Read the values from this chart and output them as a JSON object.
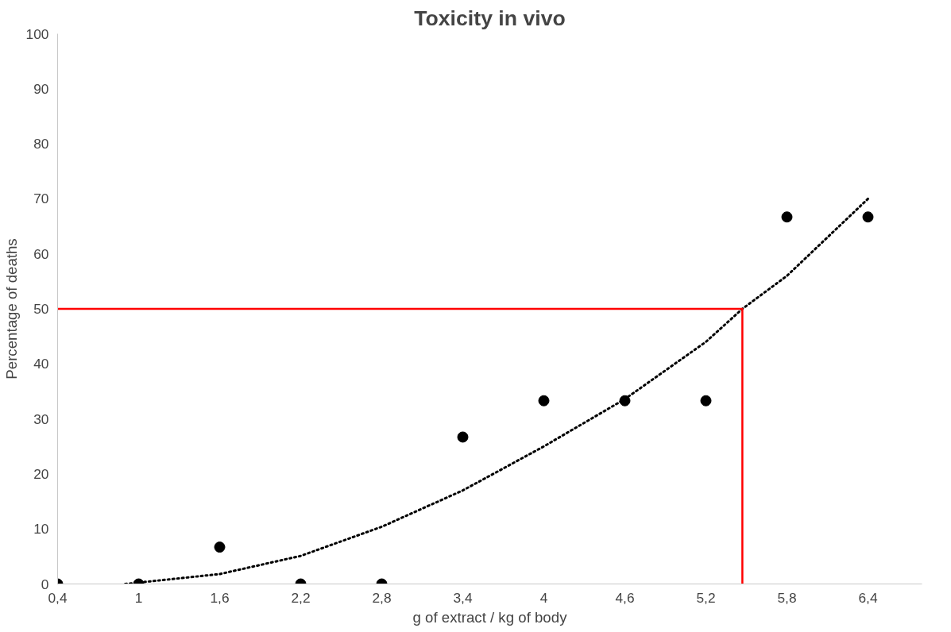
{
  "chart_data": {
    "type": "scatter",
    "title": "Toxicity in vivo",
    "xlabel": "g of extract / kg of body",
    "ylabel": "Percentage of deaths",
    "x": [
      0.4,
      1,
      1.6,
      2.2,
      2.8,
      3.4,
      4,
      4.6,
      5.2,
      5.8,
      6.4
    ],
    "series": [
      {
        "color": "#000000",
        "marker": "circle",
        "values": [
          0,
          0,
          6.7,
          0,
          0,
          26.7,
          33.3,
          33.3,
          33.3,
          66.7,
          66.7
        ]
      },
      {
        "type": "line",
        "color": "#000000",
        "line_style": "dotted",
        "x": [
          0.9,
          1.6,
          2.2,
          2.8,
          3.4,
          4,
          4.6,
          5.2,
          5.47,
          5.8,
          6.4
        ],
        "values": [
          0,
          1.8,
          5.1,
          10.4,
          17,
          25,
          33.6,
          44,
          50,
          56,
          70
        ]
      },
      {
        "type": "line",
        "color": "#ff0000",
        "line_style": "solid",
        "x": [
          0.4,
          5.47,
          5.47
        ],
        "values": [
          50,
          50,
          0
        ]
      }
    ],
    "xlim": [
      0.4,
      6.8
    ],
    "ylim": [
      0,
      100
    ],
    "xticks": [
      {
        "value": 0.4,
        "label": "0,4"
      },
      1,
      {
        "value": 1.6,
        "label": "1,6"
      },
      {
        "value": 2.2,
        "label": "2,2"
      },
      {
        "value": 2.8,
        "label": "2,8"
      },
      {
        "value": 3.4,
        "label": "3,4"
      },
      4,
      {
        "value": 4.6,
        "label": "4,6"
      },
      {
        "value": 5.2,
        "label": "5,2"
      },
      {
        "value": 5.8,
        "label": "5,8"
      },
      {
        "value": 6.4,
        "label": "6,4"
      }
    ],
    "yticks": [
      0,
      10,
      20,
      30,
      40,
      50,
      60,
      70,
      80,
      90,
      100
    ],
    "grid": false
  }
}
